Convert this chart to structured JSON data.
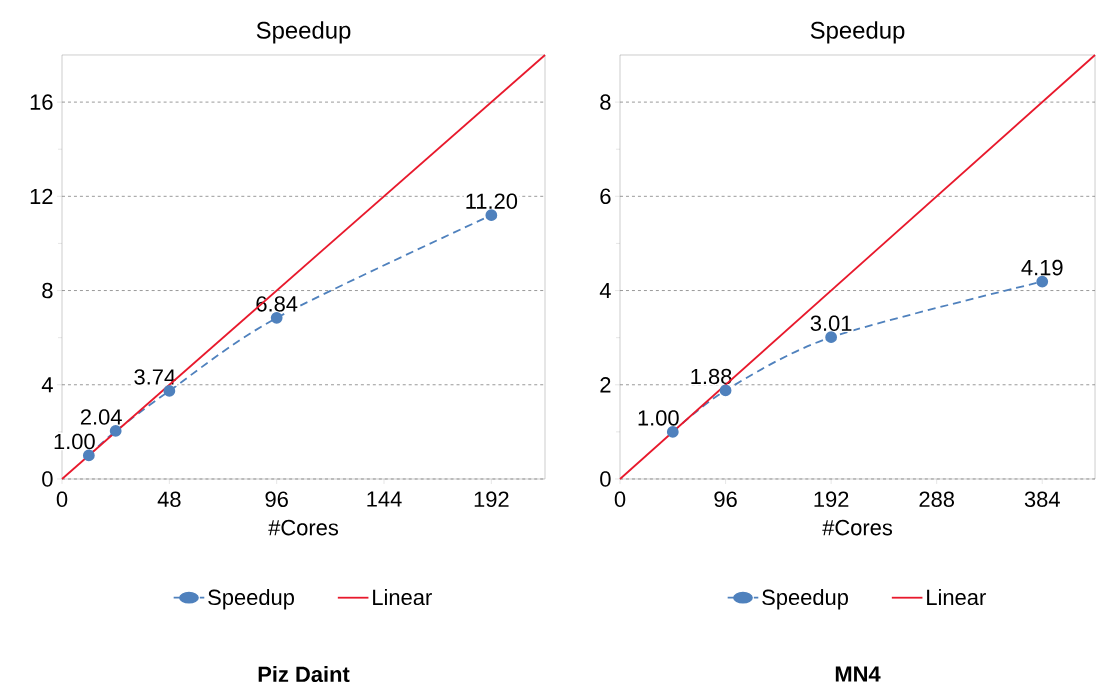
{
  "chart_data": [
    {
      "type": "line",
      "title": "Speedup",
      "xlabel": "#Cores",
      "xlim": [
        0,
        216
      ],
      "xticks": [
        0,
        48,
        96,
        144,
        192
      ],
      "ylim": [
        0,
        18
      ],
      "yticks": [
        0,
        4,
        8,
        12,
        16
      ],
      "grid": "y",
      "legend": "bottom",
      "series": [
        {
          "name": "Speedup",
          "color": "#4f81bd",
          "x": [
            12,
            24,
            48,
            96,
            192
          ],
          "values": [
            1.0,
            2.04,
            3.74,
            6.84,
            11.2
          ],
          "value_labels": [
            "1.00",
            "2.04",
            "3.74",
            "6.84",
            "11.20"
          ],
          "marker": "circle",
          "line_style": "dashed"
        },
        {
          "name": "Linear",
          "color": "#e8192c",
          "x": [
            0,
            216
          ],
          "values": [
            0,
            18
          ],
          "marker": "none",
          "line_style": "solid"
        }
      ],
      "annotations": [
        "Piz Daint"
      ]
    },
    {
      "type": "line",
      "title": "Speedup",
      "xlabel": "#Cores",
      "xlim": [
        0,
        432
      ],
      "xticks": [
        0,
        96,
        192,
        288,
        384
      ],
      "ylim": [
        0,
        9
      ],
      "yticks": [
        0,
        2,
        4,
        6,
        8
      ],
      "grid": "y",
      "legend": "bottom",
      "series": [
        {
          "name": "Speedup",
          "color": "#4f81bd",
          "x": [
            48,
            96,
            192,
            384
          ],
          "values": [
            1.0,
            1.88,
            3.01,
            4.19
          ],
          "value_labels": [
            "1.00",
            "1.88",
            "3.01",
            "4.19"
          ],
          "marker": "circle",
          "line_style": "dashed"
        },
        {
          "name": "Linear",
          "color": "#e8192c",
          "x": [
            0,
            432
          ],
          "values": [
            0,
            9
          ],
          "marker": "none",
          "line_style": "solid"
        }
      ],
      "annotations": [
        "MN4"
      ]
    }
  ]
}
